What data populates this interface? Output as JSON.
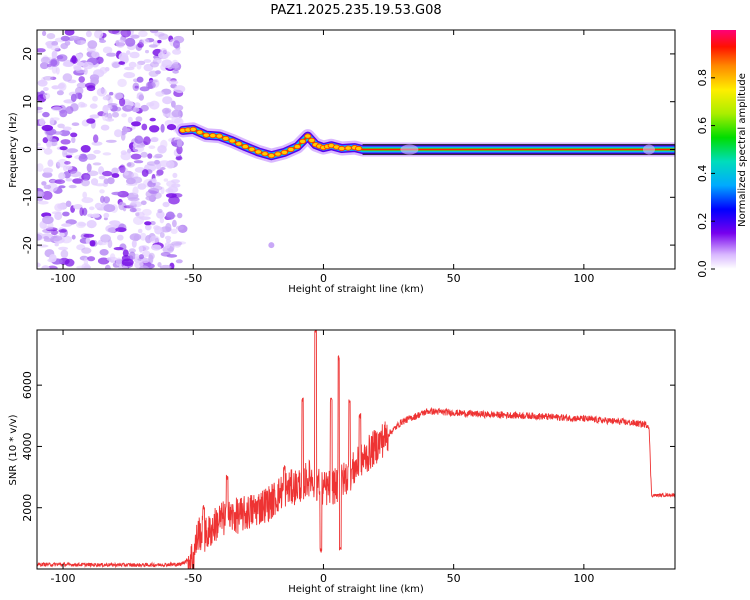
{
  "title": "PAZ1.2025.235.19.53.G08",
  "chart_data": [
    {
      "type": "heatmap",
      "xlabel": "Height of straight line (km)",
      "ylabel": "Frequency (Hz)",
      "xlim": [
        -110,
        135
      ],
      "ylim": [
        -25,
        25
      ],
      "xticks": [
        -100,
        -50,
        0,
        50,
        100
      ],
      "yticks": [
        -20,
        -10,
        0,
        10,
        20
      ],
      "colorbar": {
        "label": "Normalized spectral amplitude",
        "range": [
          0,
          1
        ],
        "ticks": [
          0.0,
          0.2,
          0.4,
          0.6,
          0.8
        ]
      },
      "noise_region_x": [
        -110,
        -54
      ],
      "signal_track": [
        {
          "x": -54,
          "y": 4.0
        },
        {
          "x": -50,
          "y": 4.2
        },
        {
          "x": -45,
          "y": 3.0
        },
        {
          "x": -40,
          "y": 2.8
        },
        {
          "x": -35,
          "y": 1.8
        },
        {
          "x": -30,
          "y": 0.6
        },
        {
          "x": -25,
          "y": -0.5
        },
        {
          "x": -20,
          "y": -1.3
        },
        {
          "x": -15,
          "y": -0.6
        },
        {
          "x": -10,
          "y": 0.6
        },
        {
          "x": -6,
          "y": 2.8
        },
        {
          "x": -3,
          "y": 1.0
        },
        {
          "x": 0,
          "y": 0.4
        },
        {
          "x": 3,
          "y": 0.8
        },
        {
          "x": 7,
          "y": 0.2
        },
        {
          "x": 12,
          "y": 0.4
        },
        {
          "x": 15,
          "y": 0.0
        },
        {
          "x": 135,
          "y": 0.0
        }
      ],
      "horizontal_lines_y": [
        1.0,
        -1.0
      ]
    },
    {
      "type": "line",
      "xlabel": "Height of straight line (km)",
      "ylabel": "SNR (10 * v/v)",
      "xlim": [
        -110,
        135
      ],
      "ylim": [
        0,
        7800
      ],
      "xticks": [
        -100,
        -50,
        0,
        50,
        100
      ],
      "yticks": [
        2000,
        4000,
        6000
      ],
      "color": "#ee3333",
      "profile": [
        {
          "x": -110,
          "y": 150
        },
        {
          "x": -90,
          "y": 140
        },
        {
          "x": -70,
          "y": 130
        },
        {
          "x": -55,
          "y": 150
        },
        {
          "x": -50,
          "y": 400
        },
        {
          "x": -48,
          "y": 1200
        },
        {
          "x": -45,
          "y": 1100
        },
        {
          "x": -40,
          "y": 1600
        },
        {
          "x": -30,
          "y": 1800
        },
        {
          "x": -20,
          "y": 2200
        },
        {
          "x": -15,
          "y": 2600
        },
        {
          "x": -10,
          "y": 2700
        },
        {
          "x": -5,
          "y": 3000
        },
        {
          "x": 0,
          "y": 2600
        },
        {
          "x": 5,
          "y": 2700
        },
        {
          "x": 10,
          "y": 3100
        },
        {
          "x": 20,
          "y": 4000
        },
        {
          "x": 30,
          "y": 4800
        },
        {
          "x": 40,
          "y": 5150
        },
        {
          "x": 60,
          "y": 5050
        },
        {
          "x": 80,
          "y": 5000
        },
        {
          "x": 100,
          "y": 4900
        },
        {
          "x": 115,
          "y": 4800
        },
        {
          "x": 125,
          "y": 4700
        },
        {
          "x": 126,
          "y": 2400
        },
        {
          "x": 135,
          "y": 2420
        }
      ],
      "spikes": [
        {
          "x": -46,
          "y": 2000
        },
        {
          "x": -37,
          "y": 3000
        },
        {
          "x": -15,
          "y": 3300
        },
        {
          "x": -8,
          "y": 5500
        },
        {
          "x": -3,
          "y": 7800
        },
        {
          "x": -1,
          "y": 600
        },
        {
          "x": 3,
          "y": 5500
        },
        {
          "x": 6,
          "y": 6900
        },
        {
          "x": 6.5,
          "y": 700
        },
        {
          "x": 10,
          "y": 5500
        },
        {
          "x": 14,
          "y": 5000
        }
      ]
    }
  ]
}
